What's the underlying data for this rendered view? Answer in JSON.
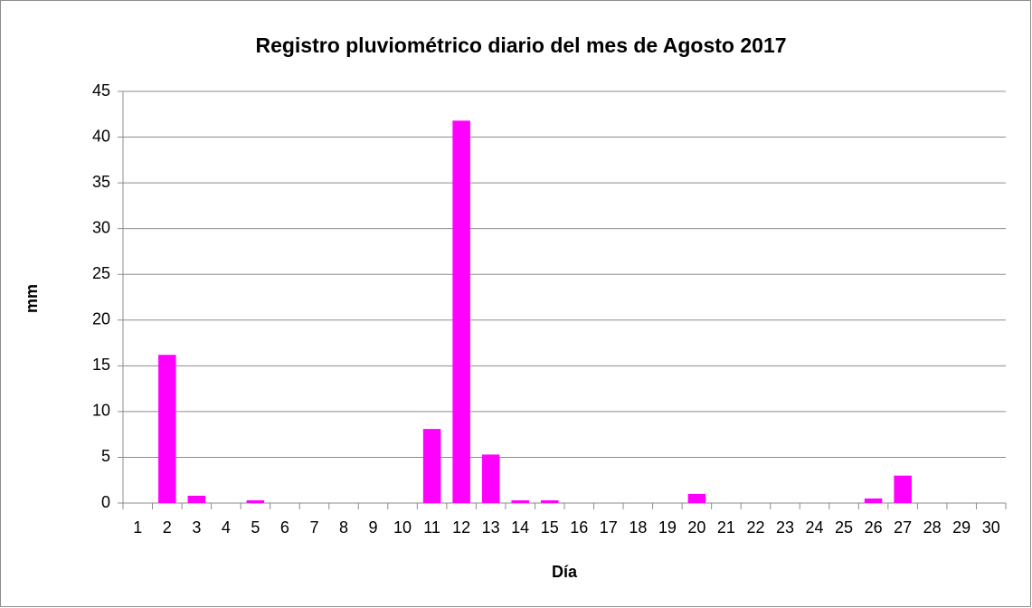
{
  "chart_data": {
    "type": "bar",
    "title": "Registro pluviométrico diario del mes de Agosto 2017",
    "x_label": "Día",
    "y_label": "mm",
    "categories": [
      "1",
      "2",
      "3",
      "4",
      "5",
      "6",
      "7",
      "8",
      "9",
      "10",
      "11",
      "12",
      "13",
      "14",
      "15",
      "16",
      "17",
      "18",
      "19",
      "20",
      "21",
      "22",
      "23",
      "24",
      "25",
      "26",
      "27",
      "28",
      "29",
      "30"
    ],
    "values": [
      0,
      16.2,
      0.8,
      0,
      0.3,
      0,
      0,
      0,
      0,
      0,
      8.1,
      41.8,
      5.3,
      0.3,
      0.3,
      0,
      0,
      0,
      0,
      1.0,
      0,
      0,
      0,
      0,
      0,
      0.5,
      3.0,
      0,
      0,
      0
    ],
    "color": "#ff00ff",
    "ylim": [
      0,
      45
    ],
    "yticks": [
      0,
      5,
      10,
      15,
      20,
      25,
      30,
      35,
      40,
      45
    ],
    "grid": true
  }
}
